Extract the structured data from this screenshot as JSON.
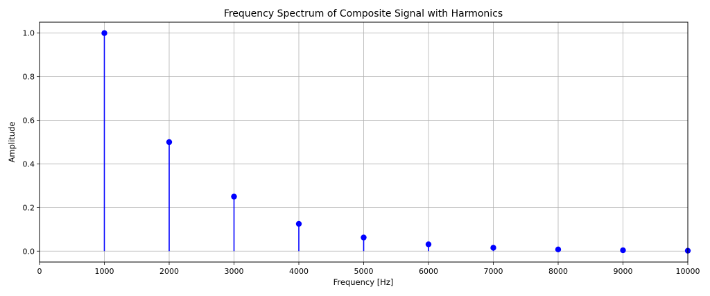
{
  "chart_data": {
    "type": "stem",
    "title": "Frequency Spectrum of Composite Signal with Harmonics",
    "xlabel": "Frequency [Hz]",
    "ylabel": "Amplitude",
    "xlim": [
      0,
      10000
    ],
    "ylim": [
      -0.05,
      1.05
    ],
    "xticks": [
      0,
      1000,
      2000,
      3000,
      4000,
      5000,
      6000,
      7000,
      8000,
      9000,
      10000
    ],
    "yticks": [
      0.0,
      0.2,
      0.4,
      0.6,
      0.8,
      1.0
    ],
    "ytick_labels": [
      "0.0",
      "0.2",
      "0.4",
      "0.6",
      "0.8",
      "1.0"
    ],
    "grid": true,
    "color": "#0000ff",
    "x": [
      1000,
      2000,
      3000,
      4000,
      5000,
      6000,
      7000,
      8000,
      9000,
      10000
    ],
    "y": [
      1.0,
      0.5,
      0.25,
      0.125,
      0.0625,
      0.03125,
      0.015625,
      0.0078125,
      0.00390625,
      0.001953125
    ]
  }
}
